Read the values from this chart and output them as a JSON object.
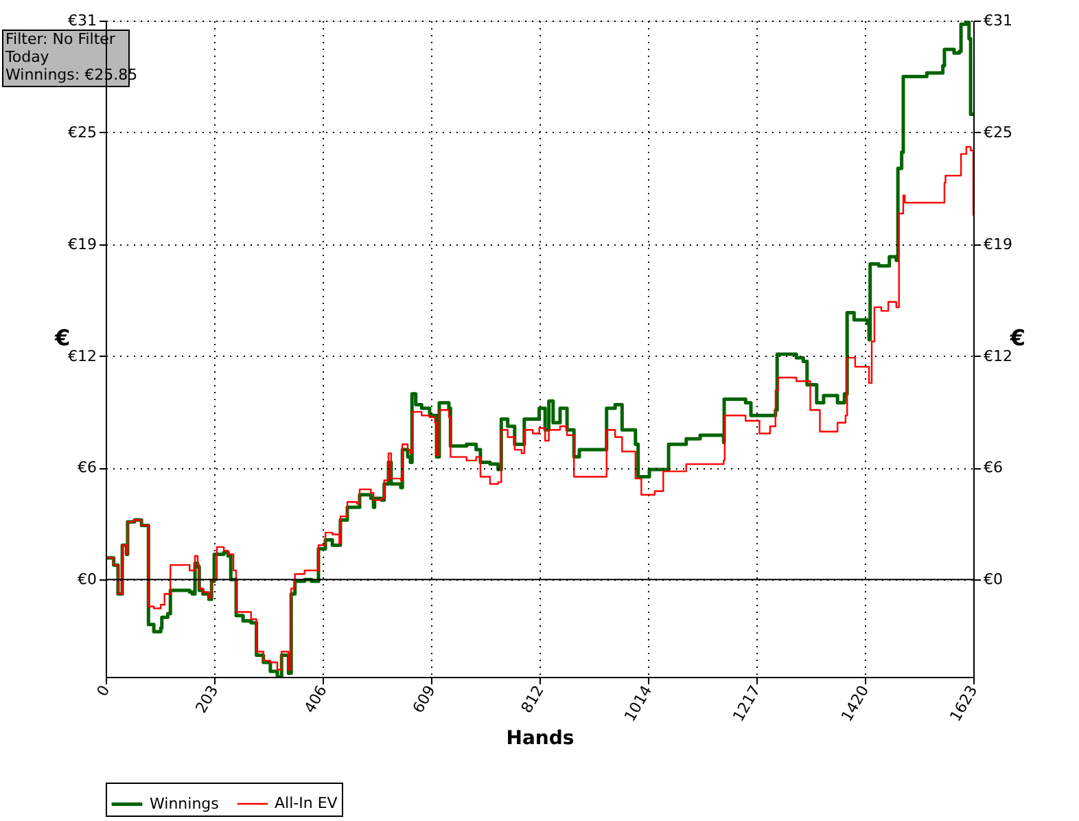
{
  "chart_data": {
    "type": "step",
    "xlabel": "Hands",
    "ylabel": "€",
    "y2label": "€",
    "xlim": [
      0,
      1623
    ],
    "xticks": [
      0,
      203,
      406,
      609,
      812,
      {
        "value": 1014,
        "label": "1014"
      },
      {
        "value": 1217,
        "label": "1217"
      },
      {
        "value": 1420,
        "label": "1420"
      },
      {
        "value": 1623,
        "label": "1623"
      }
    ],
    "ylim": [
      -5.4,
      31
    ],
    "yticks": [
      {
        "value": 0,
        "label": "€0"
      },
      {
        "value": 6.2,
        "label": "€6"
      },
      {
        "value": 12.4,
        "label": "€12"
      },
      {
        "value": 18.6,
        "label": "€19"
      },
      {
        "value": 24.8,
        "label": "€25"
      },
      {
        "value": 31,
        "label": "€31"
      }
    ],
    "y2lim": [
      -5.4,
      31
    ],
    "y2ticks": [
      {
        "value": 0,
        "label": "€0"
      },
      {
        "value": 6.2,
        "label": "€6"
      },
      {
        "value": 12.4,
        "label": "€12"
      },
      {
        "value": 18.6,
        "label": "€19"
      },
      {
        "value": 24.8,
        "label": "€25"
      },
      {
        "value": 31,
        "label": "€31"
      }
    ],
    "grid": true,
    "legend": "bottom left",
    "ref_lines": [
      {
        "axis": "y",
        "value": 0,
        "color": "#000000"
      }
    ],
    "annotations": [
      "Filter: No Filter",
      "Today",
      "Winnings: €25.85"
    ],
    "series": [
      {
        "name": "Winnings",
        "color": "#006400",
        "x": [
          0,
          15,
          23,
          31,
          39,
          41,
          54,
          67,
          77,
          80,
          90,
          103,
          105,
          116,
          121,
          157,
          162,
          167,
          172,
          175,
          182,
          193,
          198,
          203,
          221,
          229,
          234,
          244,
          257,
          272,
          282,
          295,
          308,
          321,
          329,
          336,
          342,
          347,
          354,
          372,
          385,
          398,
          411,
          424,
          437,
          439,
          452,
          470,
          475,
          496,
          501,
          503,
          516,
          521,
          529,
          534,
          552,
          555,
          565,
          570,
          573,
          580,
          591,
          606,
          616,
          619,
          624,
          642,
          645,
          675,
          683,
          693,
          701,
          719,
          734,
          740,
          752,
          765,
          778,
          783,
          799,
          811,
          822,
          829,
          837,
          850,
          863,
          876,
          886,
          932,
          937,
          953,
          966,
          991,
          996,
          1017,
          1043,
          1053,
          1086,
          1112,
          1156,
          1157,
          1197,
          1207,
          1233,
          1253,
          1256,
          1292,
          1305,
          1312,
          1330,
          1343,
          1369,
          1382,
          1387,
          1400,
          1425,
          1428,
          1430,
          1446,
          1466,
          1479,
          1482,
          1489,
          1492,
          1523,
          1536,
          1554,
          1566,
          1569,
          1587,
          1597,
          1600,
          1610,
          1615,
          1618,
          1623
        ],
        "values": [
          1.2,
          0.8,
          -0.8,
          1.9,
          1.4,
          3.2,
          3.3,
          3.0,
          3.0,
          -2.5,
          -2.9,
          -2.7,
          -2.1,
          -1.9,
          -0.6,
          -0.7,
          -0.8,
          0.9,
          0.7,
          -0.6,
          -0.8,
          -1.1,
          -0.1,
          1.4,
          1.5,
          1.3,
          0.0,
          -2.0,
          -2.3,
          -2.4,
          -4.2,
          -4.6,
          -5.1,
          -5.4,
          -4.2,
          -4.2,
          -5.2,
          -0.8,
          -0.1,
          0.0,
          -0.1,
          1.7,
          2.2,
          1.9,
          1.9,
          3.3,
          4.0,
          4.0,
          4.7,
          4.5,
          4.0,
          4.5,
          4.4,
          5.3,
          6.5,
          5.3,
          5.1,
          7.2,
          6.8,
          6.5,
          10.3,
          9.7,
          9.5,
          9.1,
          9.1,
          6.8,
          9.8,
          9.5,
          7.4,
          7.5,
          7.5,
          7.2,
          6.5,
          6.4,
          6.1,
          8.9,
          8.5,
          7.5,
          7.5,
          8.9,
          8.9,
          9.5,
          8.3,
          9.9,
          8.7,
          9.5,
          8.3,
          6.8,
          7.2,
          7.2,
          9.5,
          9.7,
          8.3,
          7.5,
          5.7,
          6.1,
          6.1,
          7.5,
          7.8,
          8.0,
          7.6,
          10.0,
          9.8,
          9.1,
          9.1,
          9.4,
          12.5,
          12.3,
          12.1,
          10.8,
          9.8,
          10.2,
          9.8,
          10.3,
          14.8,
          14.4,
          14.2,
          13.3,
          17.5,
          17.4,
          17.9,
          17.7,
          22.8,
          23.7,
          27.9,
          27.9,
          28.1,
          28.1,
          28.5,
          29.4,
          29.2,
          29.3,
          30.8,
          30.9,
          30.0,
          25.8,
          25.85
        ]
      },
      {
        "name": "All-In EV",
        "color": "#ff0000",
        "x": [
          0,
          15,
          23,
          31,
          39,
          41,
          54,
          67,
          77,
          80,
          90,
          103,
          110,
          121,
          157,
          167,
          172,
          175,
          182,
          193,
          198,
          208,
          221,
          229,
          239,
          244,
          257,
          272,
          282,
          295,
          308,
          321,
          329,
          336,
          342,
          347,
          354,
          372,
          385,
          398,
          411,
          424,
          437,
          439,
          452,
          470,
          475,
          496,
          501,
          516,
          521,
          529,
          534,
          552,
          555,
          565,
          570,
          573,
          591,
          606,
          616,
          619,
          624,
          642,
          645,
          675,
          693,
          701,
          719,
          734,
          740,
          752,
          765,
          778,
          783,
          799,
          811,
          822,
          829,
          850,
          863,
          876,
          886,
          932,
          937,
          953,
          966,
          991,
          1002,
          1027,
          1043,
          1086,
          1156,
          1158,
          1197,
          1223,
          1243,
          1253,
          1258,
          1292,
          1318,
          1336,
          1369,
          1384,
          1387,
          1402,
          1425,
          1428,
          1433,
          1438,
          1451,
          1464,
          1479,
          1484,
          1492,
          1495,
          1533,
          1551,
          1569,
          1571,
          1595,
          1600,
          1610,
          1618,
          1623
        ],
        "values": [
          1.2,
          0.8,
          -0.8,
          1.9,
          1.4,
          3.2,
          3.3,
          3.0,
          3.0,
          -1.5,
          -1.6,
          -1.4,
          -0.8,
          0.8,
          0.5,
          1.3,
          0.8,
          -0.5,
          -0.7,
          -1.0,
          0.0,
          1.8,
          1.6,
          1.4,
          0.5,
          -1.8,
          -1.8,
          -2.2,
          -4.0,
          -4.5,
          -4.6,
          -5.0,
          -4.0,
          -4.0,
          -5.0,
          -0.5,
          0.3,
          0.5,
          0.5,
          1.9,
          2.6,
          2.5,
          2.0,
          3.5,
          4.3,
          4.2,
          5.0,
          4.8,
          4.4,
          4.5,
          5.5,
          7.0,
          5.6,
          5.5,
          7.5,
          7.2,
          7.0,
          9.3,
          9.1,
          9.0,
          8.7,
          6.9,
          9.4,
          9.0,
          6.8,
          6.6,
          6.8,
          5.7,
          5.3,
          5.4,
          8.3,
          7.9,
          7.2,
          7.0,
          8.3,
          8.1,
          8.4,
          7.7,
          8.3,
          8.5,
          8.0,
          5.7,
          5.7,
          5.7,
          8.3,
          7.9,
          7.1,
          5.6,
          4.7,
          4.9,
          6.0,
          6.4,
          6.6,
          9.1,
          8.8,
          8.1,
          8.5,
          10.5,
          11.2,
          11.0,
          9.4,
          8.2,
          8.7,
          9.1,
          12.3,
          11.8,
          11.8,
          10.9,
          13.2,
          15.1,
          14.9,
          15.4,
          15.1,
          20.3,
          21.3,
          20.9,
          20.9,
          20.9,
          22.0,
          22.4,
          22.4,
          23.6,
          24.0,
          23.8,
          20.2
        ]
      }
    ]
  }
}
